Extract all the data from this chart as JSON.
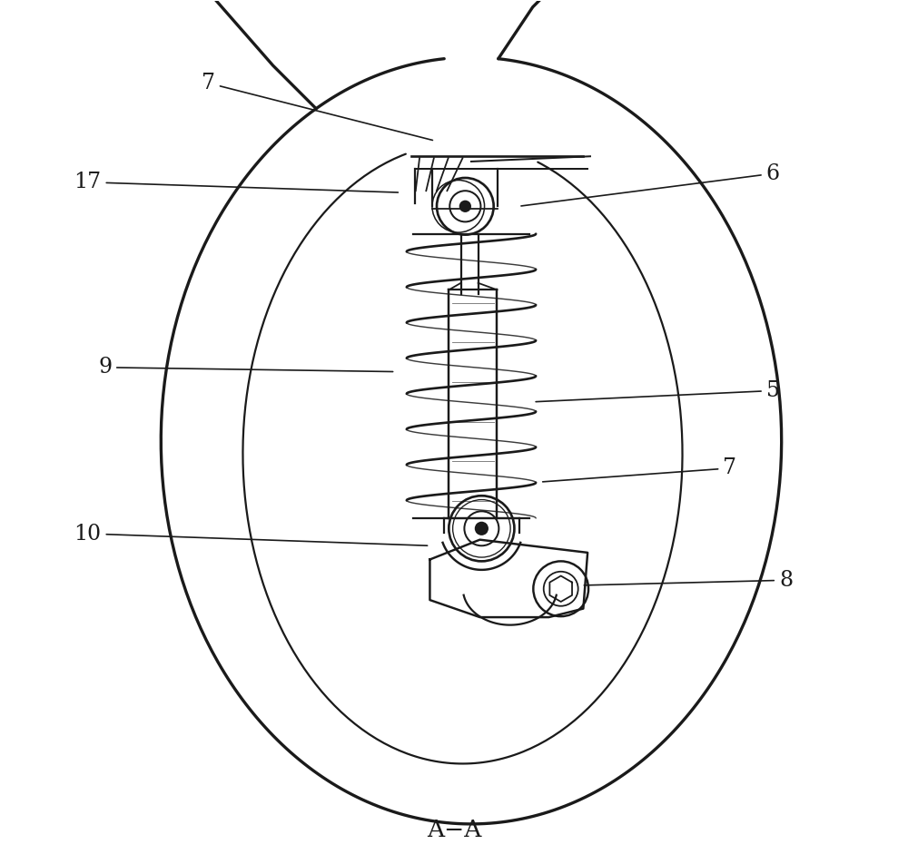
{
  "title": "A−A",
  "background_color": "#ffffff",
  "line_color": "#1a1a1a",
  "fig_width": 10.0,
  "fig_height": 9.52,
  "annotations": [
    {
      "label": "7",
      "pt": [
        0.478,
        0.838
      ],
      "txt": [
        0.215,
        0.905
      ]
    },
    {
      "label": "17",
      "pt": [
        0.438,
        0.778
      ],
      "txt": [
        0.075,
        0.79
      ]
    },
    {
      "label": "6",
      "pt": [
        0.575,
        0.762
      ],
      "txt": [
        0.87,
        0.8
      ]
    },
    {
      "label": "9",
      "pt": [
        0.432,
        0.57
      ],
      "txt": [
        0.095,
        0.575
      ]
    },
    {
      "label": "5",
      "pt": [
        0.592,
        0.535
      ],
      "txt": [
        0.87,
        0.548
      ]
    },
    {
      "label": "7",
      "pt": [
        0.6,
        0.442
      ],
      "txt": [
        0.82,
        0.458
      ]
    },
    {
      "label": "10",
      "pt": [
        0.472,
        0.368
      ],
      "txt": [
        0.075,
        0.382
      ]
    },
    {
      "label": "8",
      "pt": [
        0.648,
        0.322
      ],
      "txt": [
        0.885,
        0.328
      ]
    }
  ]
}
